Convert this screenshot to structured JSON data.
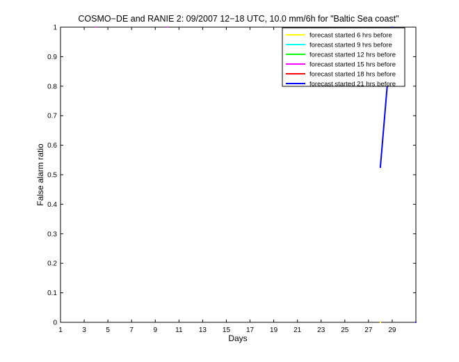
{
  "chart_data": {
    "type": "line",
    "title": "COSMO−DE and RANIE 2: 09/2007 12−18 UTC, 10.0 mm/6h for \"Baltic Sea coast\"",
    "xlabel": "Days",
    "ylabel": "False alarm ratio",
    "xlim": [
      1,
      31
    ],
    "ylim": [
      0,
      1
    ],
    "x_ticks": [
      1,
      3,
      5,
      7,
      9,
      11,
      13,
      15,
      17,
      19,
      21,
      23,
      25,
      27,
      29
    ],
    "x_tick_labels": [
      "1",
      "3",
      "5",
      "7",
      "9",
      "11",
      "13",
      "15",
      "17",
      "19",
      "21",
      "23",
      "25",
      "27",
      "29"
    ],
    "y_ticks": [
      0,
      0.1,
      0.2,
      0.3,
      0.4,
      0.5,
      0.6,
      0.7,
      0.8,
      0.9,
      1
    ],
    "y_tick_labels": [
      "0",
      "0.1",
      "0.2",
      "0.3",
      "0.4",
      "0.5",
      "0.6",
      "0.7",
      "0.8",
      "0.9",
      "1"
    ],
    "grid": false,
    "legend_position": "top-right",
    "series": [
      {
        "name": "forecast started 6 hrs before",
        "color": "#ffff00",
        "points": [
          [
            28,
            0
          ]
        ]
      },
      {
        "name": "forecast started 9 hrs before",
        "color": "#00ffff",
        "points": []
      },
      {
        "name": "forecast started 12 hrs before",
        "color": "#00ff00",
        "points": []
      },
      {
        "name": "forecast started 15 hrs before",
        "color": "#ff00ff",
        "points": [
          [
            4,
            1
          ],
          [
            10,
            1
          ],
          [
            28,
            0.905
          ],
          [
            28,
            0.8
          ]
        ]
      },
      {
        "name": "forecast started 18 hrs before",
        "color": "#ff0000",
        "points": [
          [
            28,
            0.8
          ]
        ]
      },
      {
        "name": "forecast started 21 hrs before",
        "color": "#0000ff",
        "points": [
          [
            28,
            0.525
          ],
          [
            29,
            1
          ],
          [
            31,
            0
          ]
        ]
      }
    ],
    "segments": [
      {
        "series": 5,
        "from": [
          28,
          0.525
        ],
        "to": [
          29,
          1
        ]
      }
    ]
  }
}
